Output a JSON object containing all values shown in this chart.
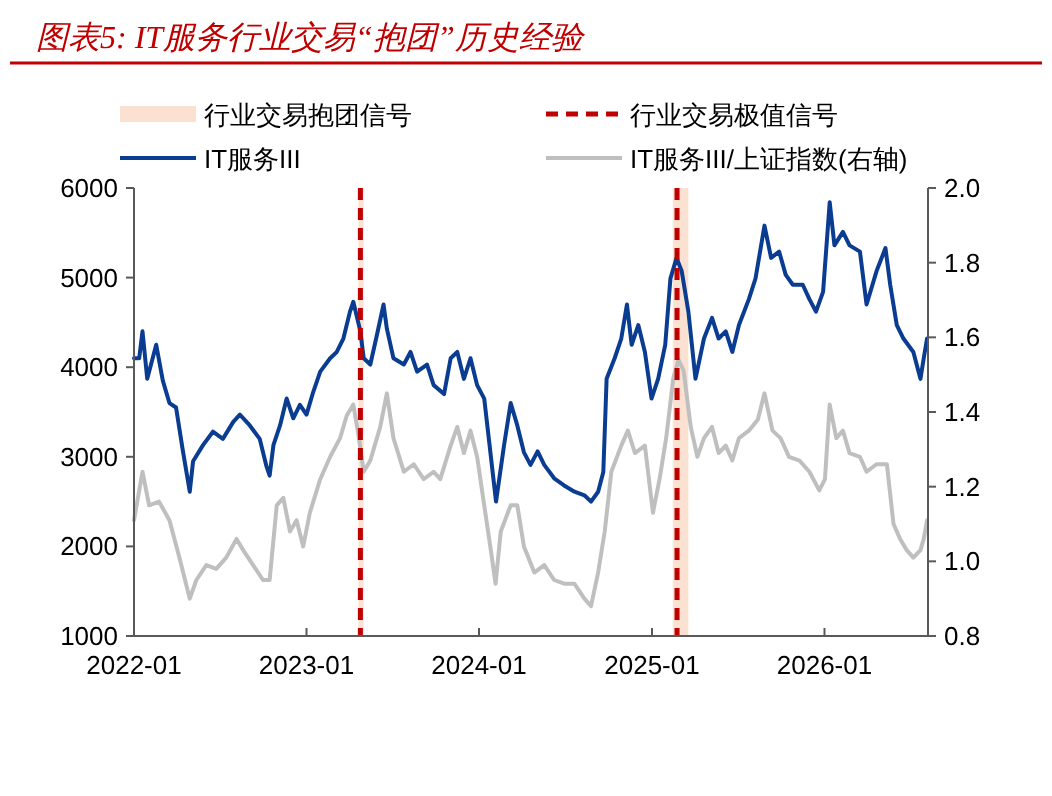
{
  "chart_data": {
    "type": "line",
    "title": "图表5: IT服务行业交易“抱团”历史经验",
    "xlim": [
      "2022-01-01",
      "2026-08-08"
    ],
    "xticks": [
      "2022-01",
      "2023-01",
      "2024-01",
      "2025-01",
      "2026-01"
    ],
    "ylim": [
      1000,
      6000
    ],
    "yticks": [
      1000,
      2000,
      3000,
      4000,
      5000,
      6000
    ],
    "y2lim": [
      0.8,
      2.0
    ],
    "y2ticks": [
      {
        "value": 0.8,
        "label": "0.8"
      },
      {
        "value": 1.0,
        "label": "1.0"
      },
      {
        "value": 1.2,
        "label": "1.2"
      },
      {
        "value": 1.4,
        "label": "1.4"
      },
      {
        "value": 1.6,
        "label": "1.6"
      },
      {
        "value": 1.8,
        "label": "1.8"
      },
      {
        "value": 2.0,
        "label": "2.0"
      }
    ],
    "grid": false,
    "legend": "top",
    "line_style": "solid",
    "bands": [
      {
        "axis": "x",
        "from": "2023-04-21",
        "to": "2023-05-02",
        "label": "行业交易抱团信号",
        "color": "#fbe1d2"
      },
      {
        "axis": "x",
        "from": "2025-02-14",
        "to": "2025-03-19",
        "color": "#fbe1d2"
      }
    ],
    "ref_lines": [
      {
        "axis": "x",
        "value": "2023-04-25",
        "label": "行业交易极值信号",
        "color": "#c00000",
        "line_style": "dashed"
      },
      {
        "axis": "x",
        "value": "2025-02-23",
        "color": "#c00000",
        "line_style": "dashed"
      }
    ],
    "series": [
      {
        "name": "IT服务III",
        "color": "#0a3d91",
        "x": [
          "2022-01-01",
          "2022-01-12",
          "2022-01-19",
          "2022-01-29",
          "2022-02-17",
          "2022-03-03",
          "2022-03-17",
          "2022-03-31",
          "2022-04-14",
          "2022-04-29",
          "2022-05-06",
          "2022-05-27",
          "2022-06-17",
          "2022-07-08",
          "2022-07-30",
          "2022-08-13",
          "2022-09-03",
          "2022-09-24",
          "2022-10-08",
          "2022-10-15",
          "2022-10-23",
          "2022-11-06",
          "2022-11-20",
          "2022-12-04",
          "2022-12-18",
          "2023-01-01",
          "2023-01-15",
          "2023-01-30",
          "2023-02-20",
          "2023-03-06",
          "2023-03-20",
          "2023-04-03",
          "2023-04-10",
          "2023-04-25",
          "2023-05-02",
          "2023-05-16",
          "2023-05-30",
          "2023-06-13",
          "2023-06-20",
          "2023-07-04",
          "2023-07-26",
          "2023-08-09",
          "2023-08-23",
          "2023-09-13",
          "2023-09-27",
          "2023-10-19",
          "2023-11-02",
          "2023-11-16",
          "2023-11-30",
          "2023-12-14",
          "2023-12-28",
          "2024-01-12",
          "2024-02-06",
          "2024-02-23",
          "2024-03-08",
          "2024-03-22",
          "2024-04-05",
          "2024-04-19",
          "2024-05-04",
          "2024-05-18",
          "2024-06-08",
          "2024-06-29",
          "2024-07-21",
          "2024-08-11",
          "2024-08-25",
          "2024-09-09",
          "2024-09-20",
          "2024-09-27",
          "2024-10-14",
          "2024-10-28",
          "2024-11-09",
          "2024-11-19",
          "2024-12-03",
          "2024-12-17",
          "2024-12-31",
          "2025-01-14",
          "2025-01-29",
          "2025-02-09",
          "2025-02-22",
          "2025-03-05",
          "2025-03-19",
          "2025-04-03",
          "2025-04-21",
          "2025-05-08",
          "2025-05-22",
          "2025-06-06",
          "2025-06-20",
          "2025-07-04",
          "2025-07-25",
          "2025-08-08",
          "2025-08-27",
          "2025-09-10",
          "2025-09-27",
          "2025-10-11",
          "2025-10-26",
          "2025-11-16",
          "2025-11-30",
          "2025-12-14",
          "2025-12-29",
          "2026-01-12",
          "2026-01-22",
          "2026-02-09",
          "2026-02-23",
          "2026-03-17",
          "2026-03-31",
          "2026-04-21",
          "2026-05-10",
          "2026-05-20",
          "2026-06-03",
          "2026-06-17",
          "2026-07-08",
          "2026-07-23",
          "2026-07-30",
          "2026-08-06"
        ],
        "values": [
          4100,
          4100,
          4400,
          3870,
          4250,
          3850,
          3600,
          3550,
          3080,
          2610,
          2950,
          3130,
          3280,
          3200,
          3390,
          3470,
          3350,
          3200,
          2900,
          2790,
          3130,
          3350,
          3650,
          3430,
          3580,
          3470,
          3720,
          3950,
          4100,
          4170,
          4320,
          4620,
          4730,
          4400,
          4100,
          4030,
          4360,
          4700,
          4430,
          4100,
          4030,
          4170,
          3950,
          4030,
          3800,
          3700,
          4100,
          4170,
          3870,
          4100,
          3800,
          3650,
          2500,
          3130,
          3600,
          3350,
          3050,
          2910,
          3060,
          2910,
          2760,
          2680,
          2610,
          2570,
          2500,
          2610,
          2830,
          3870,
          4100,
          4320,
          4700,
          4250,
          4470,
          4170,
          3650,
          3870,
          4250,
          4990,
          5220,
          5070,
          4620,
          3870,
          4320,
          4550,
          4320,
          4400,
          4170,
          4470,
          4760,
          4990,
          5580,
          5220,
          5290,
          5030,
          4920,
          4920,
          4760,
          4620,
          4840,
          5840,
          5360,
          5510,
          5360,
          5290,
          4700,
          5070,
          5330,
          4920,
          4470,
          4320,
          4170,
          3870,
          4100,
          4320
        ]
      },
      {
        "name": "IT服务III/上证指数(右轴)",
        "color": "#bfbfbf",
        "axis": "y2",
        "x": [
          "2022-01-01",
          "2022-01-19",
          "2022-02-02",
          "2022-02-23",
          "2022-03-17",
          "2022-04-07",
          "2022-04-29",
          "2022-05-13",
          "2022-06-03",
          "2022-06-24",
          "2022-07-15",
          "2022-08-06",
          "2022-08-20",
          "2022-09-10",
          "2022-10-01",
          "2022-10-15",
          "2022-10-30",
          "2022-11-13",
          "2022-11-27",
          "2022-12-11",
          "2022-12-25",
          "2023-01-08",
          "2023-01-30",
          "2023-02-20",
          "2023-03-13",
          "2023-03-27",
          "2023-04-10",
          "2023-04-22",
          "2023-05-02",
          "2023-05-16",
          "2023-06-06",
          "2023-06-20",
          "2023-07-04",
          "2023-07-26",
          "2023-08-16",
          "2023-09-06",
          "2023-09-27",
          "2023-10-11",
          "2023-11-02",
          "2023-11-16",
          "2023-11-30",
          "2023-12-14",
          "2023-12-28",
          "2024-01-12",
          "2024-01-26",
          "2024-02-05",
          "2024-02-16",
          "2024-03-08",
          "2024-03-22",
          "2024-04-05",
          "2024-04-27",
          "2024-05-18",
          "2024-06-08",
          "2024-06-29",
          "2024-07-21",
          "2024-08-11",
          "2024-08-25",
          "2024-09-09",
          "2024-09-23",
          "2024-10-07",
          "2024-10-28",
          "2024-11-11",
          "2024-11-26",
          "2024-12-17",
          "2025-01-03",
          "2025-01-17",
          "2025-01-31",
          "2025-02-15",
          "2025-02-26",
          "2025-03-09",
          "2025-03-24",
          "2025-04-07",
          "2025-04-21",
          "2025-05-08",
          "2025-05-22",
          "2025-06-06",
          "2025-06-20",
          "2025-07-04",
          "2025-07-25",
          "2025-08-13",
          "2025-08-27",
          "2025-09-13",
          "2025-09-30",
          "2025-10-18",
          "2025-11-09",
          "2025-11-30",
          "2025-12-21",
          "2026-01-02",
          "2026-01-12",
          "2026-01-26",
          "2026-02-09",
          "2026-02-23",
          "2026-03-17",
          "2026-03-31",
          "2026-04-21",
          "2026-05-13",
          "2026-05-27",
          "2026-06-10",
          "2026-06-24",
          "2026-07-08",
          "2026-07-23",
          "2026-07-30",
          "2026-08-06"
        ],
        "values": [
          1.11,
          1.24,
          1.15,
          1.16,
          1.11,
          1.01,
          0.9,
          0.95,
          0.99,
          0.98,
          1.01,
          1.06,
          1.03,
          0.99,
          0.95,
          0.95,
          1.15,
          1.17,
          1.08,
          1.11,
          1.04,
          1.13,
          1.22,
          1.28,
          1.33,
          1.39,
          1.42,
          1.33,
          1.24,
          1.27,
          1.36,
          1.45,
          1.33,
          1.24,
          1.26,
          1.22,
          1.24,
          1.22,
          1.31,
          1.36,
          1.29,
          1.35,
          1.28,
          1.15,
          1.03,
          0.94,
          1.08,
          1.15,
          1.15,
          1.04,
          0.97,
          0.99,
          0.95,
          0.94,
          0.94,
          0.9,
          0.88,
          0.97,
          1.08,
          1.24,
          1.31,
          1.35,
          1.29,
          1.31,
          1.13,
          1.22,
          1.33,
          1.49,
          1.54,
          1.51,
          1.36,
          1.28,
          1.33,
          1.36,
          1.29,
          1.31,
          1.27,
          1.33,
          1.35,
          1.38,
          1.45,
          1.35,
          1.33,
          1.28,
          1.27,
          1.24,
          1.19,
          1.22,
          1.42,
          1.33,
          1.35,
          1.29,
          1.28,
          1.24,
          1.26,
          1.26,
          1.1,
          1.06,
          1.03,
          1.01,
          1.03,
          1.06,
          1.11
        ]
      }
    ]
  }
}
